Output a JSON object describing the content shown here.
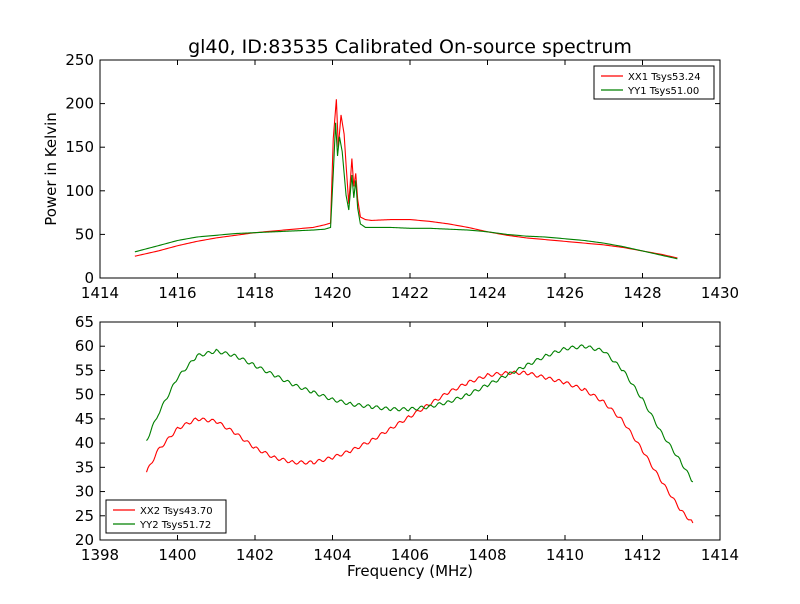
{
  "title": "gl40, ID:83535 Calibrated On-source spectrum",
  "xlabel": "Frequency (MHz)",
  "colors": {
    "red": "#ff0000",
    "green": "#008000"
  },
  "chart_data": [
    {
      "type": "line",
      "ylabel": "Power in Kelvin",
      "xlim": [
        1414,
        1430
      ],
      "ylim": [
        0,
        250
      ],
      "xticks": [
        1414,
        1416,
        1418,
        1420,
        1422,
        1424,
        1426,
        1428,
        1430
      ],
      "yticks": [
        0,
        50,
        100,
        150,
        200,
        250
      ],
      "legend_position": "top-right",
      "series": [
        {
          "name": "XX1 Tsys53.24",
          "color": "#ff0000",
          "x": [
            1414.9,
            1415.5,
            1416.0,
            1416.5,
            1417.0,
            1417.5,
            1418.0,
            1418.5,
            1419.0,
            1419.5,
            1419.8,
            1419.95,
            1420.02,
            1420.1,
            1420.15,
            1420.22,
            1420.3,
            1420.35,
            1420.42,
            1420.5,
            1420.55,
            1420.6,
            1420.65,
            1420.72,
            1420.85,
            1421.0,
            1421.5,
            1422.0,
            1422.5,
            1423.0,
            1423.5,
            1424.0,
            1424.5,
            1425.0,
            1425.5,
            1426.0,
            1426.5,
            1427.0,
            1427.5,
            1428.0,
            1428.5,
            1428.9
          ],
          "values": [
            25,
            31,
            37,
            42,
            46,
            49,
            52,
            54,
            56,
            58,
            61,
            63,
            160,
            205,
            150,
            187,
            165,
            130,
            85,
            137,
            105,
            120,
            90,
            70,
            67,
            66,
            67,
            67,
            65,
            62,
            58,
            53,
            49,
            46,
            44,
            42,
            40,
            38,
            35,
            31,
            27,
            23
          ]
        },
        {
          "name": "YY1 Tsys51.00",
          "color": "#008000",
          "x": [
            1414.9,
            1415.5,
            1416.0,
            1416.5,
            1417.0,
            1417.5,
            1418.0,
            1418.5,
            1419.0,
            1419.5,
            1419.8,
            1419.95,
            1420.02,
            1420.08,
            1420.13,
            1420.18,
            1420.25,
            1420.3,
            1420.35,
            1420.42,
            1420.5,
            1420.55,
            1420.6,
            1420.65,
            1420.72,
            1420.85,
            1421.0,
            1421.5,
            1422.0,
            1422.5,
            1423.0,
            1423.5,
            1424.0,
            1424.5,
            1425.0,
            1425.5,
            1426.0,
            1426.5,
            1427.0,
            1427.5,
            1428.0,
            1428.5,
            1428.9
          ],
          "values": [
            30,
            37,
            43,
            47,
            49,
            51,
            52,
            53,
            54,
            55,
            56,
            58,
            120,
            178,
            140,
            162,
            145,
            120,
            95,
            78,
            118,
            92,
            112,
            80,
            62,
            58,
            58,
            58,
            57,
            57,
            56,
            55,
            53,
            50,
            48,
            47,
            45,
            43,
            40,
            36,
            31,
            26,
            22
          ]
        }
      ]
    },
    {
      "type": "line",
      "ylabel": "",
      "xlim": [
        1398,
        1414
      ],
      "ylim": [
        20,
        65
      ],
      "xticks": [
        1398,
        1400,
        1402,
        1404,
        1406,
        1408,
        1410,
        1412,
        1414
      ],
      "yticks": [
        20,
        25,
        30,
        35,
        40,
        45,
        50,
        55,
        60,
        65
      ],
      "legend_position": "bottom-left",
      "series": [
        {
          "name": "XX2 Tsys43.70",
          "color": "#ff0000",
          "x": [
            1399.2,
            1399.5,
            1400.0,
            1400.5,
            1401.0,
            1401.5,
            1402.0,
            1402.5,
            1403.0,
            1403.5,
            1404.0,
            1404.5,
            1405.0,
            1405.5,
            1406.0,
            1406.5,
            1407.0,
            1407.5,
            1408.0,
            1408.5,
            1409.0,
            1409.5,
            1410.0,
            1410.5,
            1411.0,
            1411.5,
            1412.0,
            1412.5,
            1413.0,
            1413.3
          ],
          "values": [
            34,
            38.5,
            43,
            45,
            44.5,
            42,
            39,
            37,
            36,
            36,
            37,
            38.5,
            40.5,
            43,
            45.5,
            48,
            50.5,
            52.5,
            54,
            54.5,
            54.5,
            53.5,
            52.5,
            51,
            48.5,
            44.5,
            38.5,
            32,
            26,
            23.5
          ]
        },
        {
          "name": "YY2 Tsys51.72",
          "color": "#008000",
          "x": [
            1399.2,
            1399.5,
            1400.0,
            1400.5,
            1401.0,
            1401.5,
            1402.0,
            1402.5,
            1403.0,
            1403.5,
            1404.0,
            1404.5,
            1405.0,
            1405.5,
            1406.0,
            1406.5,
            1407.0,
            1407.5,
            1408.0,
            1408.5,
            1409.0,
            1409.5,
            1410.0,
            1410.5,
            1411.0,
            1411.5,
            1412.0,
            1412.5,
            1413.0,
            1413.3
          ],
          "values": [
            40.5,
            46,
            53.5,
            58,
            59,
            58,
            56,
            54,
            52,
            50.5,
            49,
            48,
            47.5,
            47,
            47,
            47.5,
            48.5,
            50,
            52,
            54,
            56,
            58,
            59.5,
            60,
            59,
            55,
            49,
            42,
            36,
            32
          ]
        }
      ]
    }
  ]
}
